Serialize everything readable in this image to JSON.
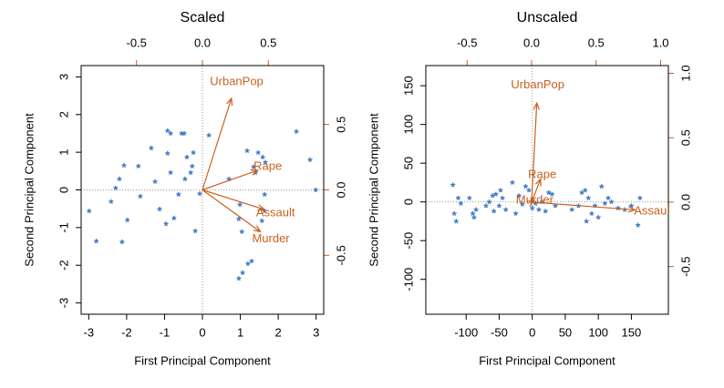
{
  "chart_data": [
    {
      "type": "biplot",
      "title": "Scaled",
      "xlabel": "First Principal Component",
      "ylabel": "Second Principal Component",
      "xlim": [
        -3.2,
        3.2
      ],
      "ylim": [
        -3.3,
        3.3
      ],
      "xticks": [
        -3,
        -2,
        -1,
        0,
        1,
        2,
        3
      ],
      "yticks": [
        -3,
        -2,
        -1,
        0,
        1,
        2,
        3
      ],
      "x2lim": [
        -0.92,
        0.92
      ],
      "x2ticks": [
        -0.5,
        {
          "value": 0,
          "label": "0.0"
        },
        0.5
      ],
      "y2lim": [
        -0.95,
        0.95
      ],
      "y2ticks": [
        -0.5,
        {
          "value": 0,
          "label": "0.0"
        },
        0.5
      ],
      "points": {
        "color": "#3d78c4",
        "x": [
          -2.99,
          -2.8,
          -2.41,
          -2.29,
          -2.19,
          -2.07,
          -1.98,
          -2.12,
          -1.69,
          -1.64,
          -1.35,
          -1.25,
          -1.13,
          -0.92,
          -0.84,
          -0.92,
          -0.84,
          -0.96,
          -0.55,
          -0.48,
          -0.41,
          -0.46,
          -0.63,
          -0.31,
          -0.24,
          -0.27,
          -0.19,
          -0.07,
          0.17,
          0.7,
          0.99,
          1.18,
          1.35,
          1.47,
          1.59,
          1.66,
          1.4,
          0.96,
          1.04,
          1.57,
          1.64,
          1.2,
          1.3,
          1.06,
          0.96,
          1.64,
          2.48,
          2.84,
          2.99,
          -0.75
        ],
        "y": [
          -0.56,
          -1.36,
          -0.31,
          0.05,
          0.29,
          0.65,
          -0.8,
          -1.38,
          0.63,
          -0.17,
          1.11,
          0.22,
          -0.51,
          1.57,
          1.5,
          0.97,
          0.46,
          -0.9,
          1.5,
          1.5,
          0.87,
          0.29,
          -0.12,
          0.46,
          0.99,
          0.63,
          -1.09,
          -0.1,
          1.45,
          0.29,
          -0.39,
          1.04,
          0.61,
          0.99,
          0.87,
          0.73,
          0.46,
          -0.77,
          -1.11,
          -0.82,
          -0.56,
          -1.96,
          -1.89,
          -2.2,
          -2.35,
          -0.12,
          1.55,
          0.8,
          0.0,
          -0.75
        ]
      },
      "arrows": {
        "color": "#c8611f",
        "names": [
          "Murder",
          "Assault",
          "UrbanPop",
          "Rape"
        ],
        "x": [
          0.44,
          0.47,
          0.22,
          0.42
        ],
        "y": [
          -0.32,
          -0.15,
          0.7,
          0.15
        ]
      }
    },
    {
      "type": "biplot",
      "title": "Unscaled",
      "xlabel": "First Principal Component",
      "ylabel": "Second Principal Component",
      "xlim": [
        -161,
        206
      ],
      "ylim": [
        -145,
        176
      ],
      "xticks": [
        -100,
        -50,
        0,
        50,
        100,
        150
      ],
      "yticks": [
        -100,
        -50,
        0,
        50,
        100,
        150
      ],
      "x2lim": [
        -0.82,
        1.06
      ],
      "x2ticks": [
        -0.5,
        {
          "value": 0,
          "label": "0.0"
        },
        0.5,
        {
          "value": 1,
          "label": "1.0"
        }
      ],
      "y2lim": [
        -0.87,
        1.06
      ],
      "y2ticks": [
        -0.5,
        {
          "value": 0,
          "label": "0.0"
        },
        0.5,
        {
          "value": 1,
          "label": "1.0"
        }
      ],
      "points": {
        "color": "#3d78c4",
        "x": [
          -120,
          -118,
          -115,
          -112,
          -108,
          -95,
          -90,
          -88,
          -85,
          -70,
          -65,
          -60,
          -58,
          -55,
          -50,
          -48,
          -45,
          -40,
          -20,
          -15,
          -10,
          -5,
          0,
          5,
          10,
          15,
          20,
          25,
          30,
          35,
          60,
          70,
          75,
          80,
          82,
          85,
          90,
          95,
          100,
          105,
          110,
          115,
          120,
          130,
          140,
          150,
          160,
          163,
          -30,
          -25
        ],
        "y": [
          22,
          -15,
          -25,
          5,
          -2,
          5,
          -15,
          -20,
          -10,
          -5,
          0,
          8,
          -12,
          10,
          -5,
          15,
          5,
          -10,
          8,
          -3,
          20,
          15,
          -8,
          -2,
          -10,
          0,
          -12,
          12,
          10,
          -5,
          -10,
          -5,
          12,
          15,
          -25,
          5,
          -15,
          -5,
          -20,
          20,
          -2,
          5,
          0,
          -8,
          -10,
          -5,
          -30,
          5,
          25,
          -15
        ]
      },
      "arrows": {
        "color": "#c8611f",
        "names": [
          "Murder",
          "Assault",
          "UrbanPop",
          "Rape"
        ],
        "x": [
          0.02,
          0.8,
          0.04,
          0.07
        ],
        "y": [
          0.01,
          -0.06,
          0.77,
          0.18
        ]
      }
    }
  ]
}
